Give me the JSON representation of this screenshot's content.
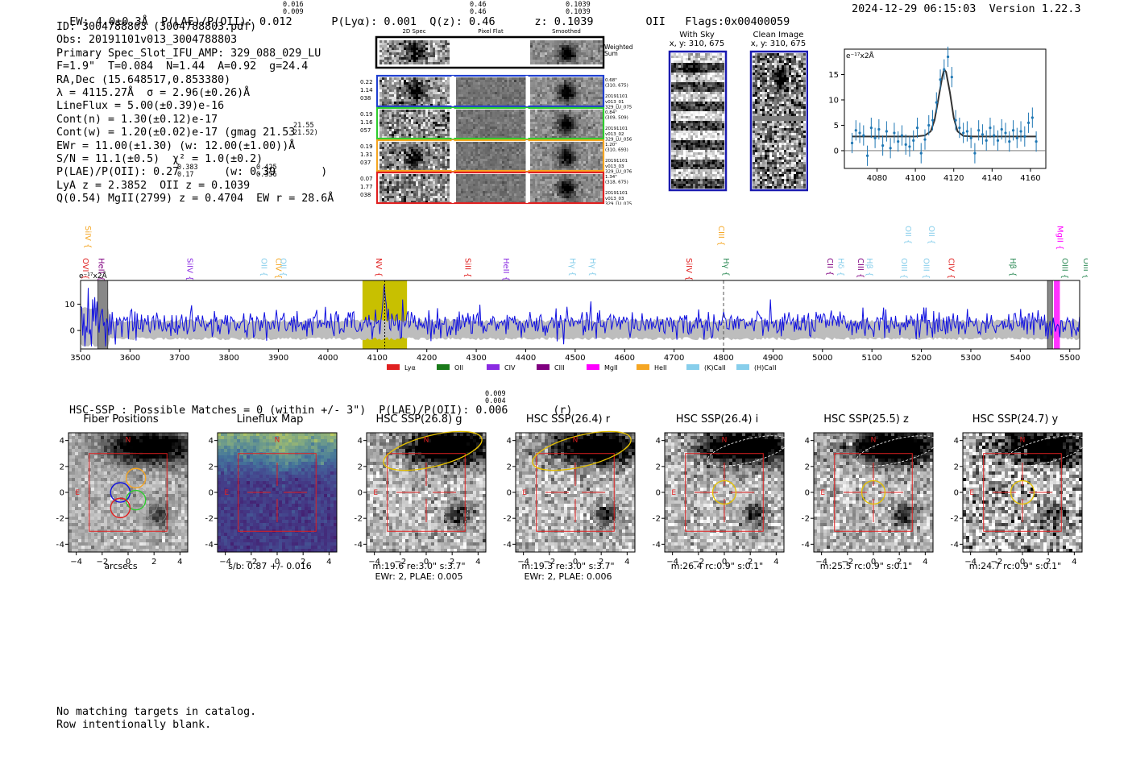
{
  "header": {
    "summary": "EW: 4.0±0.3Å  P(LAE)/P(OII): 0.012      P(Lyα): 0.001  Q(z): 0.46      z: 0.1039        OII   Flags:0x00400059",
    "plae_sup": "0.016",
    "plae_sub": "0.009",
    "qz_sup": "0.46",
    "qz_sub": "0.46",
    "z_sup": "0.1039",
    "z_sub": "0.1039",
    "timestamp": "2024-12-29 06:15:03  Version 1.22.3"
  },
  "info_lines": [
    "ID: 3004788803 (3004788803.pdf)",
    "Obs: 20191101v013_3004788803",
    "Primary Spec_Slot_IFU_AMP: 329_088_029_LU",
    "F=1.9\"  T=0.084  N=1.44  A=0.92  g=24.4",
    "RA,Dec (15.648517,0.853380)",
    "λ = 4115.27Å  σ = 2.96(±0.26)Å",
    "LineFlux = 5.00(±0.39)e-16",
    "Cont(n) = 1.30(±0.12)e-17",
    "Cont(w) = 1.20(±0.02)e-17 (gmag 21.53",
    "EWr = 11.00(±1.30) (w: 12.00(±1.00))Å",
    "S/N = 11.1(±0.5)  χ² = 1.0(±0.2)",
    "P(LAE)/P(OII): 0.27       (w: 0.39       )",
    "LyA z = 2.3852  OII z = 0.1039",
    "Q(0.54) MgII(2799) z = 0.4704  EW r = 28.6Å"
  ],
  "info_fracs": {
    "gmag_sup": "21.55",
    "gmag_sub": "21.52",
    "plae_sup": "0.383",
    "plae_sub": "0.17",
    "plaew_sup": "0.425",
    "plaew_sub": "0.356"
  },
  "fiber_panel": {
    "col_titles": [
      "2D Spec",
      "Pixel Flat",
      "Smoothed"
    ],
    "weighted_sum": "Weighted\nSum",
    "rows": [
      {
        "left": "0.22\n1.14\n038",
        "right": "0.68\"\n(310, 675)\n\n20191101\nv013_01\n329_LU_075",
        "color": "#1f3fd0"
      },
      {
        "left": "0.19\n1.16\n057",
        "right": "0.84\"\n(309, 509)\n\n20191101\nv013_02\n329_LU_056",
        "color": "#2ecc2e"
      },
      {
        "left": "0.19\n1.31\n037",
        "right": "1.20\"\n(310, 693)\n\n20191101\nv013_03\n329_LU_076",
        "color": "#f5a623"
      },
      {
        "left": "0.07\n1.77\n038",
        "right": "1.34\"\n(318, 675)\n\n20191101\nv013_03\n329_LU_075",
        "color": "#e02020"
      }
    ]
  },
  "sky_panels": [
    {
      "title": "With Sky",
      "coords": "x, y: 310, 675"
    },
    {
      "title": "Clean Image",
      "coords": "x, y: 310, 675"
    }
  ],
  "zoom_chart": {
    "unit_label": "e⁻¹⁷x2Å",
    "xticks": [
      4080,
      4100,
      4120,
      4140,
      4160
    ],
    "yticks": [
      0,
      5,
      10,
      15
    ]
  },
  "chart_data": [
    {
      "type": "scatter",
      "title": "",
      "xlabel": "",
      "ylabel": "e-17 x2Å",
      "xlim": [
        4063,
        4168
      ],
      "ylim": [
        -3.5,
        20
      ],
      "x": [
        4067,
        4069,
        4071,
        4073,
        4075,
        4077,
        4079,
        4081,
        4083,
        4085,
        4087,
        4089,
        4091,
        4093,
        4095,
        4097,
        4099,
        4101,
        4103,
        4105,
        4107,
        4109,
        4111,
        4113,
        4115,
        4117,
        4119,
        4121,
        4123,
        4125,
        4127,
        4129,
        4131,
        4133,
        4135,
        4137,
        4139,
        4141,
        4143,
        4145,
        4147,
        4149,
        4151,
        4153,
        4155,
        4157,
        4159,
        4161,
        4163
      ],
      "y": [
        1.5,
        4.0,
        3.5,
        3.0,
        -1.0,
        4.5,
        2.5,
        4.2,
        1.0,
        3.8,
        0.5,
        3.5,
        1.8,
        3.0,
        1.2,
        0.8,
        2.0,
        4.5,
        -0.5,
        2.2,
        5.0,
        6.0,
        9.5,
        14.0,
        16.0,
        18.5,
        14.5,
        6.0,
        4.5,
        3.5,
        3.8,
        2.5,
        -0.5,
        4.0,
        3.2,
        2.0,
        4.5,
        3.0,
        2.0,
        4.2,
        3.5,
        1.8,
        4.0,
        2.5,
        3.8,
        2.8,
        5.5,
        6.5,
        1.8
      ],
      "fit_x": [
        4067,
        4100,
        4105,
        4108,
        4110,
        4112,
        4114,
        4115,
        4116,
        4118,
        4120,
        4122,
        4125,
        4130,
        4163
      ],
      "fit_y": [
        2.8,
        2.8,
        3.0,
        3.8,
        6.0,
        10.2,
        14.5,
        16.0,
        15.5,
        11.5,
        6.5,
        3.8,
        2.9,
        2.8,
        2.8
      ]
    },
    {
      "type": "line",
      "title": "",
      "xlabel": "",
      "ylabel": "e-17 x2Å",
      "xlim": [
        3500,
        5520
      ],
      "ylim": [
        -7,
        19
      ],
      "xticks": [
        3500,
        3600,
        3700,
        3800,
        3900,
        4000,
        4100,
        4200,
        4300,
        4400,
        4500,
        4600,
        4700,
        4800,
        4900,
        5000,
        5100,
        5200,
        5300,
        5400,
        5500
      ],
      "yticks": [
        0,
        10
      ],
      "highlight_band": [
        4070,
        4160
      ],
      "peak_x": 4115,
      "masked_bands": [
        [
          3535,
          3555
        ],
        [
          5455,
          5465
        ]
      ],
      "mgii_band": [
        5468,
        5480
      ],
      "series": [
        {
          "values_note": "noisy spectrum, peak near 4115",
          "peak_value": 15.5,
          "baseline": 3.0
        }
      ]
    }
  ],
  "line_labels": {
    "top_row": [
      {
        "text": "SiIV",
        "x": 3510,
        "color": "#f5a623"
      },
      {
        "text": "CIII",
        "x": 4790,
        "color": "#f5a623"
      },
      {
        "text": "OII",
        "x": 5168,
        "color": "#87ceeb"
      },
      {
        "text": "OII",
        "x": 5215,
        "color": "#87ceeb"
      },
      {
        "text": "MgII",
        "x": 5475,
        "color": "#ff00ff"
      }
    ],
    "bottom_row": [
      {
        "text": "OVI",
        "x": 3505,
        "color": "#e02020"
      },
      {
        "text": "HeII",
        "x": 3537,
        "color": "#800080"
      },
      {
        "text": "SiIV",
        "x": 3716,
        "color": "#8a2be2"
      },
      {
        "text": "OII",
        "x": 3866,
        "color": "#87ceeb"
      },
      {
        "text": "CIV",
        "x": 3895,
        "color": "#f5a623"
      },
      {
        "text": "OII",
        "x": 3905,
        "color": "#87ceeb"
      },
      {
        "text": "NV",
        "x": 4098,
        "color": "#e02020"
      },
      {
        "text": "SiII",
        "x": 4278,
        "color": "#e02020"
      },
      {
        "text": "HeII",
        "x": 4355,
        "color": "#8a2be2"
      },
      {
        "text": "Hγ",
        "x": 4490,
        "color": "#87ceeb"
      },
      {
        "text": "Hγ",
        "x": 4530,
        "color": "#87ceeb"
      },
      {
        "text": "SiIV",
        "x": 4725,
        "color": "#e02020"
      },
      {
        "text": "Hγ",
        "x": 4800,
        "color": "#2e8b57"
      },
      {
        "text": "CII",
        "x": 5010,
        "color": "#800080"
      },
      {
        "text": "Hδ",
        "x": 5032,
        "color": "#87ceeb"
      },
      {
        "text": "CIII",
        "x": 5072,
        "color": "#800080"
      },
      {
        "text": "Hβ",
        "x": 5090,
        "color": "#87ceeb"
      },
      {
        "text": "OIII",
        "x": 5160,
        "color": "#87ceeb"
      },
      {
        "text": "OIII",
        "x": 5205,
        "color": "#87ceeb"
      },
      {
        "text": "CIV",
        "x": 5255,
        "color": "#e02020"
      },
      {
        "text": "Hβ",
        "x": 5380,
        "color": "#2e8b57"
      },
      {
        "text": "OIII",
        "x": 5485,
        "color": "#2e8b57"
      },
      {
        "text": "OIII",
        "x": 5555,
        "color": "#2e8b57"
      }
    ]
  },
  "legend": [
    {
      "label": "Lyα",
      "color": "#e02020"
    },
    {
      "label": "OII",
      "color": "#1a7a1a"
    },
    {
      "label": "CIV",
      "color": "#8a2be2"
    },
    {
      "label": "CIII",
      "color": "#800080"
    },
    {
      "label": "MgII",
      "color": "#ff00ff"
    },
    {
      "label": "HeII",
      "color": "#f5a623"
    },
    {
      "label": "(K)CaII",
      "color": "#87ceeb"
    },
    {
      "label": "(H)CaII",
      "color": "#87ceeb"
    }
  ],
  "hsc_line": "HSC-SSP : Possible Matches = 0 (within +/- 3\")  P(LAE)/P(OII): 0.006       (r)",
  "hsc_frac": {
    "sup": "0.009",
    "sub": "0.004"
  },
  "cutouts": [
    {
      "title": "Fiber Positions",
      "foot1": "arcsecs",
      "foot2": "",
      "type": "fiber"
    },
    {
      "title": "Lineflux Map",
      "foot1": "s/b: 0.87 +/- 0.016",
      "foot2": "",
      "type": "flux"
    },
    {
      "title": "HSC SSP(26.8) g",
      "foot1": "m:19.6  re:3.0\"  s:3.7\"",
      "foot2": "EWr: 2, PLAE: 0.005",
      "type": "g"
    },
    {
      "title": "HSC SSP(26.4) r",
      "foot1": "m:19.3  re:3.0\"  s:3.7\"",
      "foot2": "EWr: 2, PLAE: 0.006",
      "type": "r"
    },
    {
      "title": "HSC SSP(26.4) i",
      "foot1": "m:26.4  rc:0.9\"  s:0.1\"",
      "foot2": "",
      "type": "i"
    },
    {
      "title": "HSC SSP(25.5) z",
      "foot1": "m:25.5  rc:0.9\"  s:0.1\"",
      "foot2": "",
      "type": "z"
    },
    {
      "title": "HSC SSP(24.7) y",
      "foot1": "m:24.7  rc:0.9\"  s:0.1\"",
      "foot2": "",
      "type": "y"
    }
  ],
  "cutout_axis": {
    "ticks": [
      "−4",
      "−2",
      "0",
      "2",
      "4"
    ],
    "north": "N",
    "east": "E"
  },
  "footer": [
    "No matching targets in catalog.",
    "Row intentionally blank."
  ]
}
